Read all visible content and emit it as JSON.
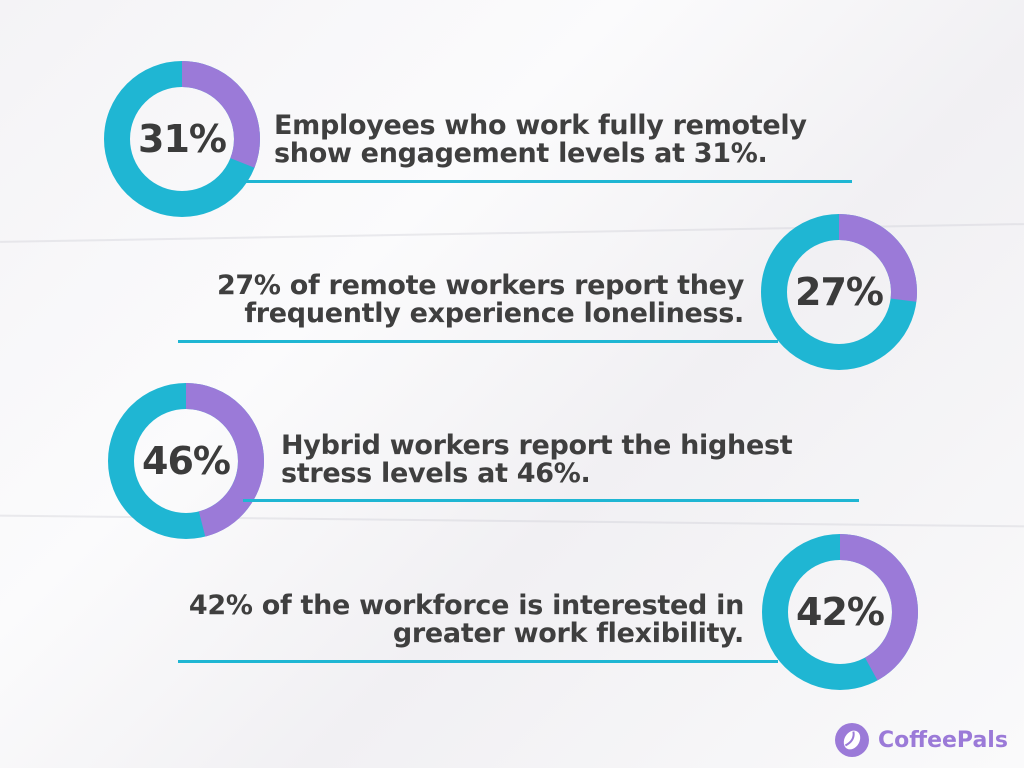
{
  "colors": {
    "filled": "#9b7ad8",
    "rest": "#1fb6d3",
    "rule": "#1fb6d3",
    "brand": "#9b7ad8"
  },
  "chart_data": [
    {
      "type": "pie",
      "values": [
        31,
        69
      ],
      "label": "31%",
      "text_line1": "Employees who work fully remotely",
      "text_line2": "show engagement levels at 31%."
    },
    {
      "type": "pie",
      "values": [
        27,
        73
      ],
      "label": "27%",
      "text_line1": "27% of remote workers report they",
      "text_line2": "frequently experience loneliness."
    },
    {
      "type": "pie",
      "values": [
        46,
        54
      ],
      "label": "46%",
      "text_line1": "Hybrid workers report the highest",
      "text_line2": "stress levels at 46%."
    },
    {
      "type": "pie",
      "values": [
        42,
        58
      ],
      "label": "42%",
      "text_line1": "42% of the workforce is interested in",
      "text_line2": "greater work flexibility."
    }
  ],
  "brand": {
    "name": "CoffeePals",
    "icon": "coffee-bean-icon"
  }
}
